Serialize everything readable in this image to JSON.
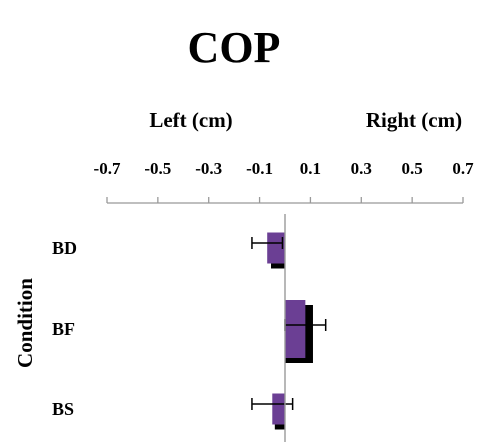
{
  "chart_data": {
    "type": "bar",
    "orientation": "horizontal",
    "title": "COP",
    "x_side_labels": {
      "left": "Left (cm)",
      "right": "Right (cm)"
    },
    "ylabel": "Condition",
    "xlim": [
      -0.7,
      0.7
    ],
    "x_tick_labels": [
      "-0.7",
      "-0.5",
      "-0.3",
      "-0.1",
      "0.1",
      "0.3",
      "0.5",
      "0.7"
    ],
    "categories": [
      "BD",
      "BF",
      "BS"
    ],
    "series": [
      {
        "values": [
          -0.07,
          0.08,
          -0.05
        ],
        "error": [
          0.06,
          0.08,
          0.08
        ],
        "color": "#6b3f94"
      },
      {
        "values": [
          -0.055,
          0.11,
          -0.04
        ],
        "color": "#000000"
      }
    ],
    "axis_position": "top",
    "grid": false,
    "legend": "none"
  }
}
